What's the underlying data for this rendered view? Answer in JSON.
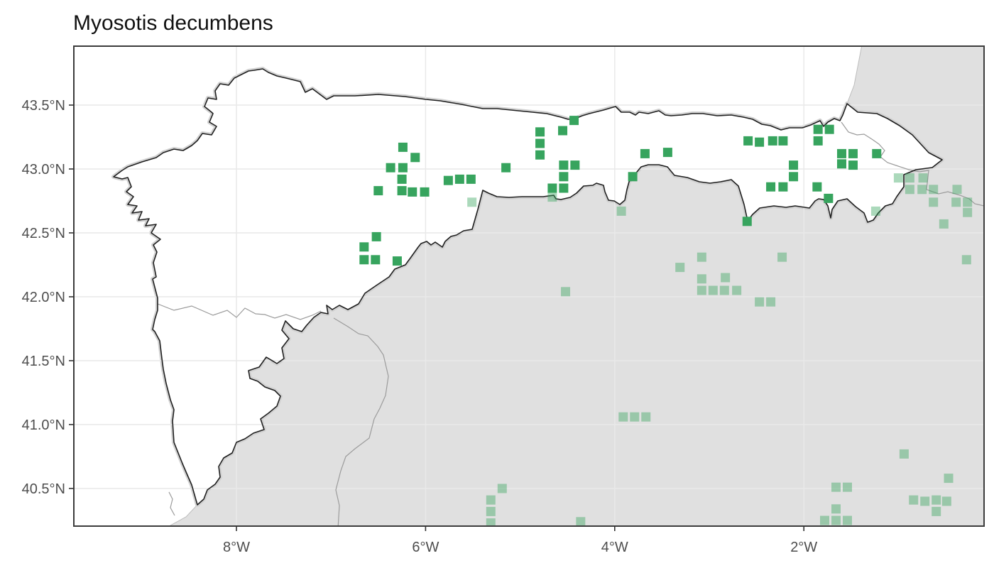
{
  "chart_data": {
    "type": "scatter",
    "title": "Myosotis decumbens",
    "x_axis": {
      "ticks": [
        -8,
        -6,
        -4,
        -2
      ],
      "labels": [
        "8°W",
        "6°W",
        "4°W",
        "2°W"
      ],
      "range": [
        -9.72,
        -0.09
      ]
    },
    "y_axis": {
      "ticks": [
        43.5,
        43.0,
        42.5,
        42.0,
        41.5,
        41.0,
        40.5
      ],
      "labels": [
        "43.5°N",
        "43.0°N",
        "42.5°N",
        "42.0°N",
        "41.5°N",
        "41.0°N",
        "40.5°N"
      ],
      "range": [
        40.21,
        43.96
      ]
    },
    "legend": "none",
    "grid": "on",
    "basemap": "Iberian Peninsula with NW-Spain/North-Portugal Atlantic region highlighted in white over gray land",
    "series": [
      {
        "name": "occurrences-highlighted",
        "marker": "square",
        "color": "#37a45e",
        "opacity": 1,
        "points": [
          [
            -6.24,
            43.17
          ],
          [
            -6.11,
            43.09
          ],
          [
            -6.37,
            43.01
          ],
          [
            -6.24,
            43.01
          ],
          [
            -6.25,
            42.92
          ],
          [
            -6.5,
            42.83
          ],
          [
            -6.25,
            42.83
          ],
          [
            -6.14,
            42.82
          ],
          [
            -6.01,
            42.82
          ],
          [
            -5.76,
            42.91
          ],
          [
            -5.64,
            42.92
          ],
          [
            -5.52,
            42.92
          ],
          [
            -6.52,
            42.47
          ],
          [
            -6.65,
            42.39
          ],
          [
            -6.65,
            42.29
          ],
          [
            -6.53,
            42.29
          ],
          [
            -6.3,
            42.28
          ],
          [
            -5.15,
            43.01
          ],
          [
            -4.79,
            43.29
          ],
          [
            -4.55,
            43.3
          ],
          [
            -4.79,
            43.2
          ],
          [
            -4.79,
            43.11
          ],
          [
            -4.43,
            43.38
          ],
          [
            -4.54,
            43.03
          ],
          [
            -4.42,
            43.03
          ],
          [
            -4.54,
            42.94
          ],
          [
            -4.66,
            42.85
          ],
          [
            -4.54,
            42.85
          ],
          [
            -3.81,
            42.94
          ],
          [
            -3.68,
            43.12
          ],
          [
            -3.44,
            43.13
          ],
          [
            -2.59,
            43.22
          ],
          [
            -2.47,
            43.21
          ],
          [
            -2.33,
            43.22
          ],
          [
            -2.22,
            43.22
          ],
          [
            -1.85,
            43.31
          ],
          [
            -1.73,
            43.31
          ],
          [
            -1.85,
            43.22
          ],
          [
            -1.6,
            43.12
          ],
          [
            -1.48,
            43.12
          ],
          [
            -1.6,
            43.04
          ],
          [
            -1.48,
            43.03
          ],
          [
            -1.23,
            43.12
          ],
          [
            -2.11,
            43.03
          ],
          [
            -2.11,
            42.94
          ],
          [
            -2.35,
            42.86
          ],
          [
            -2.22,
            42.86
          ],
          [
            -1.86,
            42.86
          ],
          [
            -1.74,
            42.77
          ],
          [
            -2.6,
            42.59
          ]
        ]
      },
      {
        "name": "occurrences-faded",
        "marker": "square",
        "color": "#37a45e",
        "opacity": 0.42,
        "points": [
          [
            -5.51,
            42.74
          ],
          [
            -4.66,
            42.78
          ],
          [
            -3.93,
            42.67
          ],
          [
            -1.24,
            42.67
          ],
          [
            -1.0,
            42.93
          ],
          [
            -0.88,
            42.93
          ],
          [
            -0.74,
            42.93
          ],
          [
            -0.88,
            42.84
          ],
          [
            -0.75,
            42.84
          ],
          [
            -0.63,
            42.84
          ],
          [
            -0.38,
            42.84
          ],
          [
            -0.63,
            42.74
          ],
          [
            -0.39,
            42.74
          ],
          [
            -0.27,
            42.74
          ],
          [
            -0.27,
            42.66
          ],
          [
            -0.52,
            42.57
          ],
          [
            -0.28,
            42.29
          ],
          [
            -4.52,
            42.04
          ],
          [
            -3.31,
            42.23
          ],
          [
            -3.08,
            42.31
          ],
          [
            -3.08,
            42.14
          ],
          [
            -3.08,
            42.05
          ],
          [
            -2.96,
            42.05
          ],
          [
            -2.83,
            42.15
          ],
          [
            -2.84,
            42.05
          ],
          [
            -2.71,
            42.05
          ],
          [
            -2.47,
            41.96
          ],
          [
            -2.35,
            41.96
          ],
          [
            -2.23,
            42.31
          ],
          [
            -3.91,
            41.06
          ],
          [
            -3.79,
            41.06
          ],
          [
            -3.67,
            41.06
          ],
          [
            -5.19,
            40.5
          ],
          [
            -5.31,
            40.41
          ],
          [
            -5.31,
            40.32
          ],
          [
            -5.31,
            40.23
          ],
          [
            -4.36,
            40.24
          ],
          [
            -0.94,
            40.77
          ],
          [
            -0.47,
            40.58
          ],
          [
            -1.66,
            40.51
          ],
          [
            -1.54,
            40.51
          ],
          [
            -0.84,
            40.41
          ],
          [
            -0.72,
            40.4
          ],
          [
            -0.6,
            40.41
          ],
          [
            -0.49,
            40.4
          ],
          [
            -0.6,
            40.32
          ],
          [
            -1.66,
            40.34
          ],
          [
            -1.78,
            40.25
          ],
          [
            -1.66,
            40.25
          ],
          [
            -1.54,
            40.25
          ]
        ]
      }
    ]
  },
  "colors": {
    "background": "#ffffff",
    "sea": "#ffffff",
    "land_gray": "#e0e0e0",
    "land_edge": "#bdbdbd",
    "coast_shadow": "#d2d2d2",
    "region_fill": "#ffffff",
    "region_border": "#1f1f1f",
    "country_border": "#9b9b9b",
    "gridline": "#e9e9e9",
    "panel_border": "#3c3c3c",
    "tick_mark": "#333333",
    "axis_text": "#4d4d4d",
    "point_green": "#37a45e"
  }
}
